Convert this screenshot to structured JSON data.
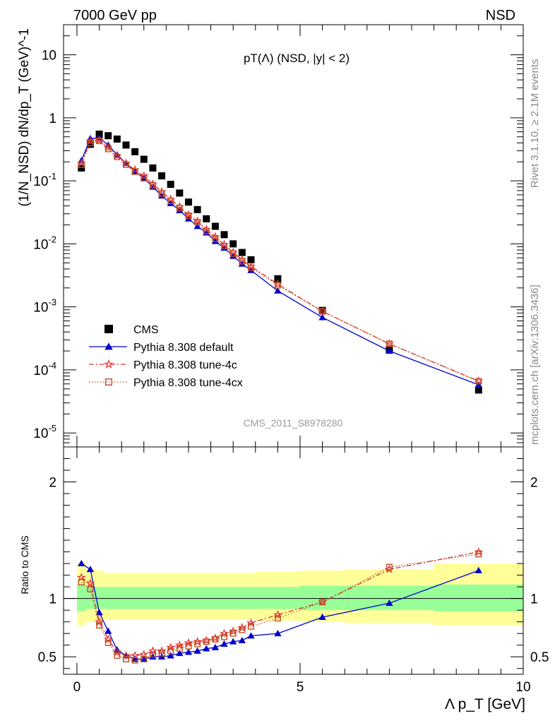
{
  "header": {
    "left": "7000 GeV pp",
    "right": "NSD"
  },
  "side": {
    "rivet": "Rivet 3.1.10, ≥ 2.1M events",
    "mcplots": "mcplots.cern.ch [arXiv:1306.3436]"
  },
  "chart_data": [
    {
      "type": "scatter",
      "panel": "main",
      "title": "pT(Λ) (NSD, |y| < 2)",
      "watermark": "CMS_2011_S8978280",
      "ylabel": "(1/N_NSD) dN/dp_T (GeV)^-1",
      "yscale": "log",
      "xlim": [
        -0.3,
        10.0
      ],
      "ylim": [
        6e-06,
        30
      ],
      "x_ticks": [
        "0",
        "5",
        "10"
      ],
      "y_ticks": [
        "10^-5",
        "10^-4",
        "10^-3",
        "10^-2",
        "10^-1",
        "1",
        "10"
      ],
      "legend_position": "lower-left",
      "series": [
        {
          "name": "CMS",
          "color": "#000000",
          "marker": "square-filled",
          "x": [
            0.1,
            0.3,
            0.5,
            0.7,
            0.9,
            1.1,
            1.3,
            1.5,
            1.7,
            1.9,
            2.1,
            2.3,
            2.5,
            2.7,
            2.9,
            3.1,
            3.3,
            3.5,
            3.7,
            3.9,
            4.5,
            5.5,
            7.0,
            9.0
          ],
          "y": [
            0.16,
            0.38,
            0.55,
            0.52,
            0.46,
            0.37,
            0.29,
            0.22,
            0.16,
            0.12,
            0.088,
            0.064,
            0.046,
            0.035,
            0.025,
            0.019,
            0.014,
            0.01,
            0.0073,
            0.0056,
            0.0028,
            0.00088,
            0.00021,
            4.8e-05
          ]
        },
        {
          "name": "Pythia 8.308 default",
          "color": "#0000cc",
          "marker": "triangle-filled",
          "line": "solid",
          "x": [
            0.1,
            0.3,
            0.5,
            0.7,
            0.9,
            1.1,
            1.3,
            1.5,
            1.7,
            1.9,
            2.1,
            2.3,
            2.5,
            2.7,
            2.9,
            3.1,
            3.3,
            3.5,
            3.7,
            3.9,
            4.5,
            5.5,
            7.0,
            9.0
          ],
          "y": [
            0.21,
            0.47,
            0.48,
            0.37,
            0.26,
            0.19,
            0.14,
            0.11,
            0.08,
            0.058,
            0.044,
            0.034,
            0.025,
            0.019,
            0.015,
            0.011,
            0.0086,
            0.0064,
            0.0048,
            0.0038,
            0.0018,
            0.00068,
            0.0002,
            5.8e-05
          ]
        },
        {
          "name": "Pythia 8.308 tune-4c",
          "color": "#e03030",
          "marker": "star-open",
          "line": "dashdot",
          "x": [
            0.1,
            0.3,
            0.5,
            0.7,
            0.9,
            1.1,
            1.3,
            1.5,
            1.7,
            1.9,
            2.1,
            2.3,
            2.5,
            2.7,
            2.9,
            3.1,
            3.3,
            3.5,
            3.7,
            3.9,
            4.5,
            5.5,
            7.0,
            9.0
          ],
          "y": [
            0.19,
            0.43,
            0.44,
            0.34,
            0.25,
            0.19,
            0.15,
            0.12,
            0.089,
            0.067,
            0.051,
            0.039,
            0.029,
            0.023,
            0.017,
            0.013,
            0.0098,
            0.0074,
            0.0056,
            0.0044,
            0.0023,
            0.00085,
            0.00026,
            6.7e-05
          ]
        },
        {
          "name": "Pythia 8.308 tune-4cx",
          "color": "#c05020",
          "marker": "square-open",
          "line": "dotted",
          "x": [
            0.1,
            0.3,
            0.5,
            0.7,
            0.9,
            1.1,
            1.3,
            1.5,
            1.7,
            1.9,
            2.1,
            2.3,
            2.5,
            2.7,
            2.9,
            3.1,
            3.3,
            3.5,
            3.7,
            3.9,
            4.5,
            5.5,
            7.0,
            9.0
          ],
          "y": [
            0.18,
            0.4,
            0.43,
            0.32,
            0.24,
            0.18,
            0.14,
            0.11,
            0.085,
            0.063,
            0.048,
            0.037,
            0.028,
            0.022,
            0.016,
            0.012,
            0.0092,
            0.007,
            0.0053,
            0.0042,
            0.0022,
            0.00085,
            0.00026,
            6.6e-05
          ]
        }
      ]
    },
    {
      "type": "line",
      "panel": "ratio",
      "ylabel": "Ratio to CMS",
      "xlabel": "Λ p_T [GeV]",
      "xlim": [
        -0.3,
        10.0
      ],
      "ylim": [
        0.35,
        2.3
      ],
      "x_ticks": [
        "0",
        "5",
        "10"
      ],
      "y_ticks": [
        "0.5",
        "1",
        "2"
      ],
      "reference_line": 1,
      "bands": {
        "edges": [
          0.0,
          0.2,
          0.4,
          0.6,
          0.8,
          1.0,
          1.2,
          1.4,
          1.6,
          1.8,
          2.0,
          2.2,
          2.4,
          2.6,
          2.8,
          3.0,
          3.2,
          3.4,
          3.6,
          3.8,
          4.0,
          5.0,
          6.0,
          8.0,
          10.0
        ],
        "yellow_lo": [
          0.77,
          0.8,
          0.81,
          0.82,
          0.82,
          0.82,
          0.82,
          0.82,
          0.82,
          0.82,
          0.82,
          0.82,
          0.82,
          0.82,
          0.82,
          0.82,
          0.82,
          0.82,
          0.82,
          0.82,
          0.81,
          0.8,
          0.79,
          0.77
        ],
        "yellow_hi": [
          1.3,
          1.25,
          1.24,
          1.22,
          1.22,
          1.22,
          1.22,
          1.22,
          1.22,
          1.22,
          1.22,
          1.22,
          1.22,
          1.22,
          1.22,
          1.22,
          1.22,
          1.22,
          1.22,
          1.22,
          1.23,
          1.24,
          1.25,
          1.3
        ],
        "green_lo": [
          0.89,
          0.91,
          0.91,
          0.91,
          0.91,
          0.91,
          0.91,
          0.91,
          0.91,
          0.91,
          0.91,
          0.91,
          0.91,
          0.91,
          0.91,
          0.91,
          0.91,
          0.91,
          0.91,
          0.91,
          0.91,
          0.9,
          0.9,
          0.89
        ],
        "green_hi": [
          1.12,
          1.1,
          1.1,
          1.1,
          1.1,
          1.1,
          1.1,
          1.1,
          1.1,
          1.1,
          1.1,
          1.1,
          1.1,
          1.1,
          1.1,
          1.1,
          1.1,
          1.1,
          1.1,
          1.1,
          1.1,
          1.11,
          1.11,
          1.12
        ]
      },
      "series": [
        {
          "name": "Pythia 8.308 default",
          "color": "#0000cc",
          "marker": "triangle-filled",
          "line": "solid",
          "x": [
            0.1,
            0.3,
            0.5,
            0.7,
            0.9,
            1.1,
            1.3,
            1.5,
            1.7,
            1.9,
            2.1,
            2.3,
            2.5,
            2.7,
            2.9,
            3.1,
            3.3,
            3.5,
            3.7,
            3.9,
            4.5,
            5.5,
            7.0,
            9.0
          ],
          "y": [
            1.3,
            1.25,
            0.88,
            0.72,
            0.56,
            0.51,
            0.48,
            0.48,
            0.5,
            0.5,
            0.51,
            0.53,
            0.54,
            0.55,
            0.57,
            0.58,
            0.61,
            0.63,
            0.64,
            0.68,
            0.7,
            0.84,
            0.96,
            1.24
          ]
        },
        {
          "name": "Pythia 8.308 tune-4c",
          "color": "#e03030",
          "marker": "star-open",
          "line": "dashdot",
          "x": [
            0.1,
            0.3,
            0.5,
            0.7,
            0.9,
            1.1,
            1.3,
            1.5,
            1.7,
            1.9,
            2.1,
            2.3,
            2.5,
            2.7,
            2.9,
            3.1,
            3.3,
            3.5,
            3.7,
            3.9,
            4.5,
            5.5,
            7.0,
            9.0
          ],
          "y": [
            1.18,
            1.13,
            0.8,
            0.65,
            0.54,
            0.51,
            0.51,
            0.52,
            0.55,
            0.55,
            0.58,
            0.6,
            0.62,
            0.63,
            0.64,
            0.66,
            0.7,
            0.72,
            0.75,
            0.79,
            0.86,
            0.97,
            1.25,
            1.4
          ]
        },
        {
          "name": "Pythia 8.308 tune-4cx",
          "color": "#c05020",
          "marker": "square-open",
          "line": "dotted",
          "x": [
            0.1,
            0.3,
            0.5,
            0.7,
            0.9,
            1.1,
            1.3,
            1.5,
            1.7,
            1.9,
            2.1,
            2.3,
            2.5,
            2.7,
            2.9,
            3.1,
            3.3,
            3.5,
            3.7,
            3.9,
            4.5,
            5.5,
            7.0,
            9.0
          ],
          "y": [
            1.14,
            1.08,
            0.77,
            0.62,
            0.51,
            0.48,
            0.47,
            0.48,
            0.52,
            0.53,
            0.55,
            0.57,
            0.59,
            0.61,
            0.63,
            0.65,
            0.67,
            0.7,
            0.73,
            0.76,
            0.83,
            0.97,
            1.27,
            1.38
          ]
        }
      ]
    }
  ]
}
